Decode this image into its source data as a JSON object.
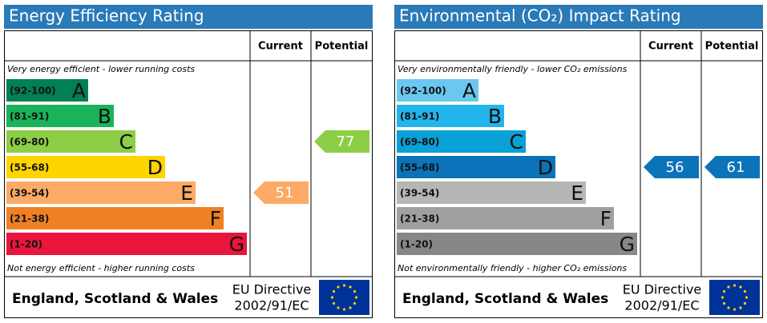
{
  "panels": [
    {
      "title": "Energy Efficiency Rating",
      "header": {
        "current": "Current",
        "potential": "Potential"
      },
      "top_note": "Very energy efficient - lower running costs",
      "bottom_note": "Not energy efficient - higher running costs",
      "bands": [
        {
          "range": "(92-100)",
          "letter": "A",
          "color": "#008054"
        },
        {
          "range": "(81-91)",
          "letter": "B",
          "color": "#19b459"
        },
        {
          "range": "(69-80)",
          "letter": "C",
          "color": "#8dce46"
        },
        {
          "range": "(55-68)",
          "letter": "D",
          "color": "#ffd500"
        },
        {
          "range": "(39-54)",
          "letter": "E",
          "color": "#fcaa65"
        },
        {
          "range": "(21-38)",
          "letter": "F",
          "color": "#ef8023"
        },
        {
          "range": "(1-20)",
          "letter": "G",
          "color": "#e9153b"
        }
      ],
      "current": 51,
      "potential": 77,
      "footer": {
        "region": "England, Scotland & Wales",
        "directive_line1": "EU Directive",
        "directive_line2": "2002/91/EC"
      }
    },
    {
      "title": "Environmental (CO₂) Impact Rating",
      "header": {
        "current": "Current",
        "potential": "Potential"
      },
      "top_note": "Very environmentally friendly - lower CO₂ emissions",
      "bottom_note": "Not environmentally friendly - higher CO₂ emissions",
      "bands": [
        {
          "range": "(92-100)",
          "letter": "A",
          "color": "#6ac8f0"
        },
        {
          "range": "(81-91)",
          "letter": "B",
          "color": "#22b5eb"
        },
        {
          "range": "(69-80)",
          "letter": "C",
          "color": "#0aa0d8"
        },
        {
          "range": "(55-68)",
          "letter": "D",
          "color": "#0b73b9"
        },
        {
          "range": "(39-54)",
          "letter": "E",
          "color": "#b6b6b6"
        },
        {
          "range": "(21-38)",
          "letter": "F",
          "color": "#a0a0a0"
        },
        {
          "range": "(1-20)",
          "letter": "G",
          "color": "#878787"
        }
      ],
      "current": 56,
      "potential": 61,
      "footer": {
        "region": "England, Scotland & Wales",
        "directive_line1": "EU Directive",
        "directive_line2": "2002/91/EC"
      }
    }
  ]
}
